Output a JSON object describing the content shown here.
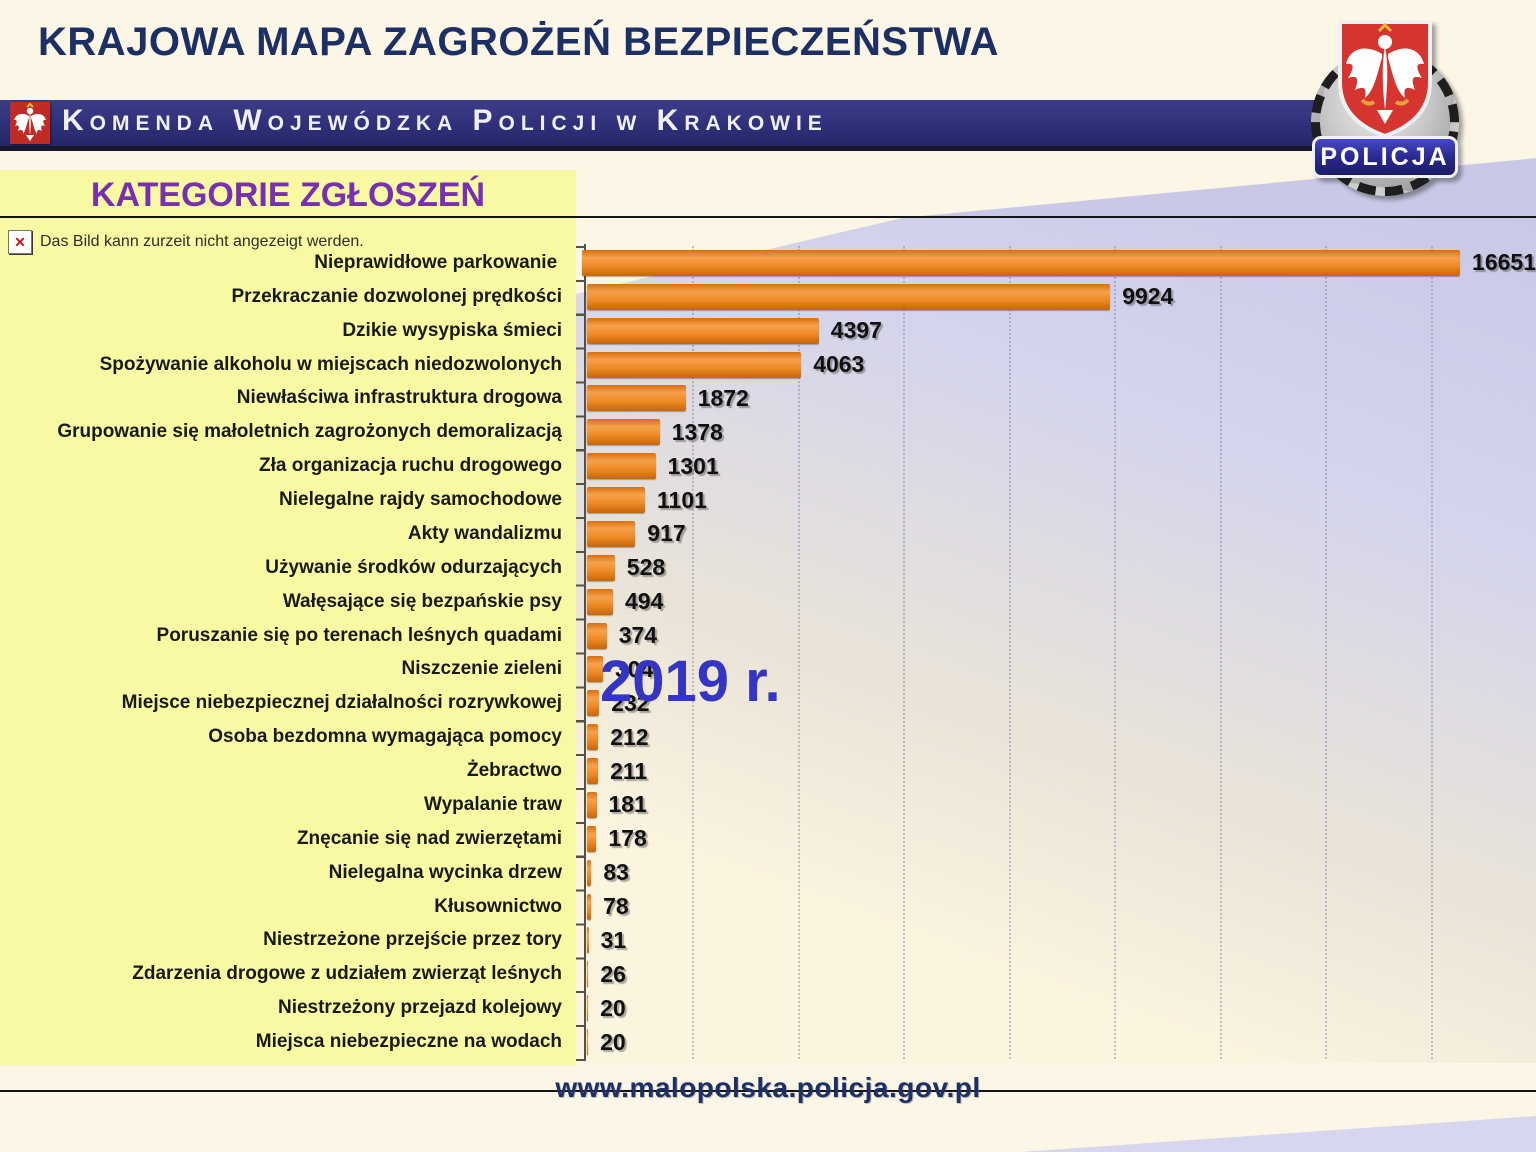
{
  "page": {
    "title": "KRAJOWA MAPA ZAGROŻEŃ BEZPIECZEŃSTWA",
    "banner": {
      "text": "Komenda Wojewódzka Policji w Krakowie"
    },
    "badge": {
      "label": "POLICJA"
    },
    "panel": {
      "heading": "KATEGORIE ZGŁOSZEŃ"
    },
    "broken_image_notice": {
      "icon": "broken-image-x",
      "text": "Das Bild kann zurzeit nicht angezeigt werden."
    },
    "year_overlay": "2019 r.",
    "footer": {
      "url": "www.malopolska.policja.gov.pl"
    },
    "colors": {
      "bar_orange": "#ED7D31",
      "heading_purple": "#7630B0",
      "title_navy": "#1D3066",
      "panel_yellow": "#F9F9A3",
      "banner_navy": "#30307A",
      "year_blue": "#3535C3",
      "chart_bg_lavender": "#C9C9E7"
    }
  },
  "chart_data": {
    "type": "bar",
    "orientation": "horizontal",
    "title": "KATEGORIE ZGŁOSZEŃ",
    "xlabel": "",
    "ylabel": "",
    "xlim": [
      0,
      18000
    ],
    "gridline_step": 2000,
    "grid": "vertical-dotted",
    "legend": "none",
    "value_labels": true,
    "categories": [
      "Nieprawidłowe parkowanie",
      "Przekraczanie dozwolonej prędkości",
      "Dzikie wysypiska śmieci",
      "Spożywanie alkoholu w miejscach niedozwolonych",
      "Niewłaściwa infrastruktura drogowa",
      "Grupowanie się małoletnich zagrożonych demoralizacją",
      "Zła organizacja ruchu drogowego",
      "Nielegalne rajdy samochodowe",
      "Akty wandalizmu",
      "Używanie środków odurzających",
      "Wałęsające się bezpańskie psy",
      "Poruszanie się po terenach leśnych quadami",
      "Niszczenie zieleni",
      "Miejsce niebezpiecznej działalności rozrywkowej",
      "Osoba bezdomna wymagająca pomocy",
      "Żebractwo",
      "Wypalanie traw",
      "Znęcanie się nad zwierzętami",
      "Nielegalna wycinka drzew",
      "Kłusownictwo",
      "Niestrzeżone przejście przez tory",
      "Zdarzenia drogowe z udziałem zwierząt leśnych",
      "Niestrzeżony przejazd kolejowy",
      "Miejsca niebezpieczne na wodach"
    ],
    "values": [
      16651,
      9924,
      4397,
      4063,
      1872,
      1378,
      1301,
      1101,
      917,
      528,
      494,
      374,
      304,
      232,
      212,
      211,
      181,
      178,
      83,
      78,
      31,
      26,
      20,
      20
    ]
  }
}
